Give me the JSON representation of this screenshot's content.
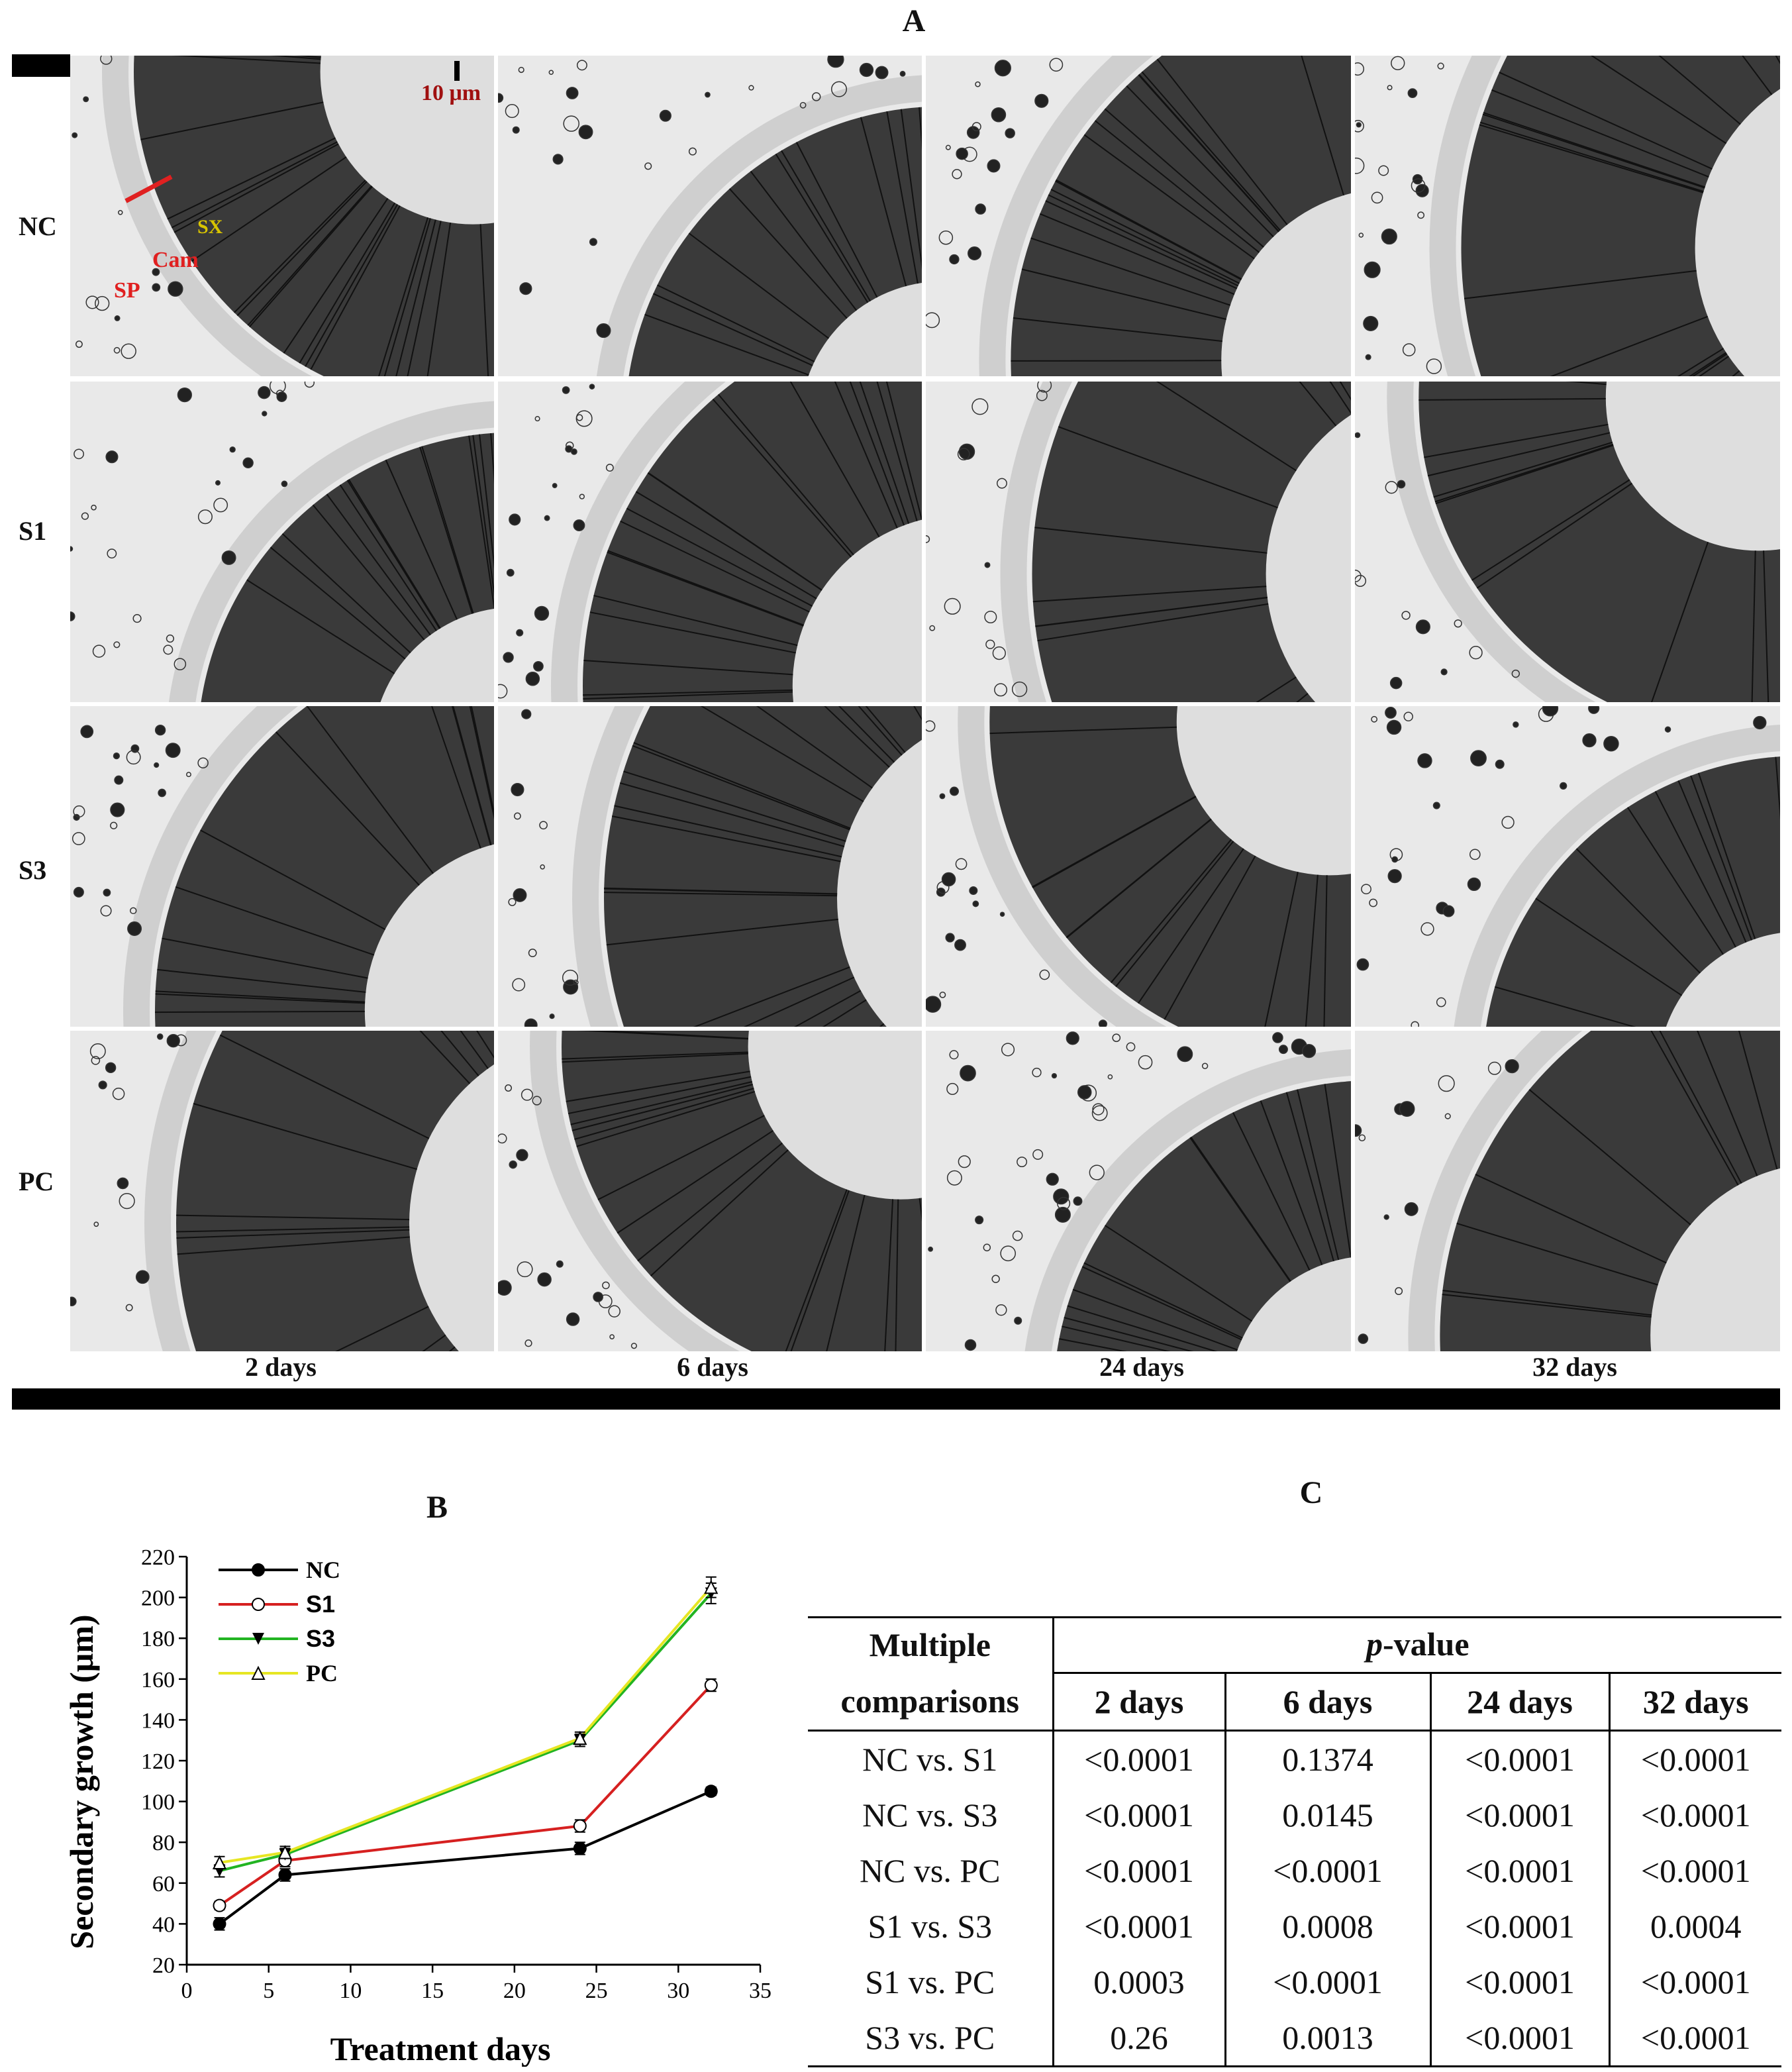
{
  "panelA": {
    "letter": "A",
    "rows": [
      "NC",
      "S1",
      "S3",
      "PC"
    ],
    "columns": [
      "2 days",
      "6 days",
      "24 days",
      "32 days"
    ],
    "annotations": {
      "scale": "10 μm",
      "sx": "SX",
      "cam": "Cam",
      "sp": "SP"
    }
  },
  "panelB": {
    "letter": "B"
  },
  "panelC": {
    "letter": "C",
    "header_comparisons_1": "Multiple",
    "header_comparisons_2": "comparisons",
    "header_pvalue": "p-value",
    "days": [
      "2 days",
      "6 days",
      "24 days",
      "32 days"
    ],
    "rows": [
      {
        "comparison": "NC vs. S1",
        "values": [
          "<0.0001",
          "0.1374",
          "<0.0001",
          "<0.0001"
        ]
      },
      {
        "comparison": "NC vs. S3",
        "values": [
          "<0.0001",
          "0.0145",
          "<0.0001",
          "<0.0001"
        ]
      },
      {
        "comparison": "NC vs. PC",
        "values": [
          "<0.0001",
          "<0.0001",
          "<0.0001",
          "<0.0001"
        ]
      },
      {
        "comparison": "S1 vs. S3",
        "values": [
          "<0.0001",
          "0.0008",
          "<0.0001",
          "0.0004"
        ]
      },
      {
        "comparison": "S1 vs. PC",
        "values": [
          "0.0003",
          "<0.0001",
          "<0.0001",
          "<0.0001"
        ]
      },
      {
        "comparison": "S3 vs. PC",
        "values": [
          "0.26",
          "0.0013",
          "<0.0001",
          "<0.0001"
        ]
      }
    ]
  },
  "chart_data": {
    "type": "line",
    "title": "",
    "xlabel": "Treatment days",
    "ylabel": "Secondary growth (μm)",
    "xlim": [
      0,
      35
    ],
    "ylim": [
      20,
      220
    ],
    "xticks": [
      0,
      5,
      10,
      15,
      20,
      25,
      30,
      35
    ],
    "yticks": [
      20,
      40,
      60,
      80,
      100,
      120,
      140,
      160,
      180,
      200,
      220
    ],
    "x": [
      2,
      6,
      24,
      32
    ],
    "legend_position": "top-left",
    "series": [
      {
        "name": "NC",
        "values": [
          40,
          64,
          77,
          105
        ],
        "errors": [
          3,
          3,
          3,
          2
        ],
        "color": "#000000",
        "marker": "filled-circle"
      },
      {
        "name": "S1",
        "values": [
          49,
          71,
          88,
          157
        ],
        "errors": [
          2,
          3,
          3,
          3
        ],
        "color": "#d62020",
        "marker": "open-circle"
      },
      {
        "name": "S3",
        "values": [
          66,
          74,
          130,
          202
        ],
        "errors": [
          3,
          3,
          3,
          5
        ],
        "color": "#22b422",
        "marker": "filled-triangle-down"
      },
      {
        "name": "PC",
        "values": [
          70,
          75,
          131,
          205
        ],
        "errors": [
          3,
          3,
          3,
          5
        ],
        "color": "#e6e623",
        "marker": "open-triangle-up"
      }
    ]
  }
}
